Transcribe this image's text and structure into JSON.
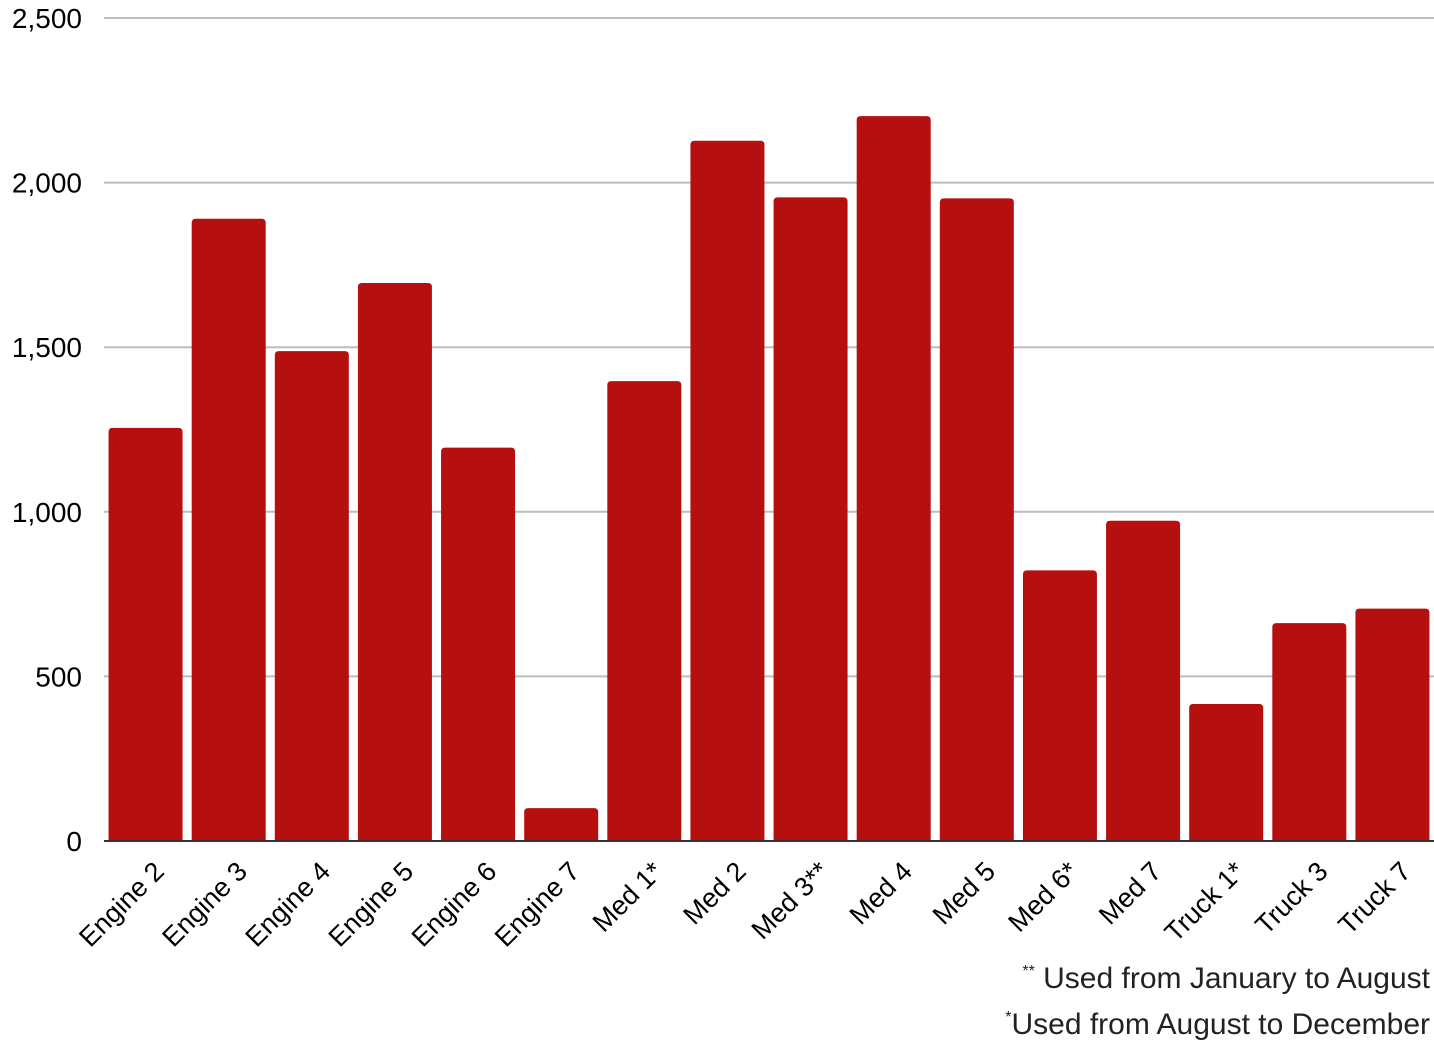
{
  "chart_data": {
    "type": "bar",
    "categories": [
      "Engine 2",
      "Engine 3",
      "Engine 4",
      "Engine 5",
      "Engine 6",
      "Engine 7",
      "Med 1*",
      "Med 2",
      "Med 3**",
      "Med 4",
      "Med 5",
      "Med 6*",
      "Med 7",
      "Truck 1*",
      "Truck 3",
      "Truck 7"
    ],
    "values": [
      1255,
      1890,
      1488,
      1695,
      1195,
      100,
      1397,
      2127,
      1955,
      2202,
      1952,
      822,
      973,
      416,
      662,
      706
    ],
    "title": "",
    "xlabel": "",
    "ylabel": "",
    "ylim": [
      0,
      2500
    ],
    "yticks": [
      0,
      500,
      1000,
      1500,
      2000,
      2500
    ],
    "ytick_labels": [
      "0",
      "500",
      "1,000",
      "1,500",
      "2,000",
      "2,500"
    ],
    "grid": true,
    "bar_color": "#b50f0f",
    "grid_color": "#bdbdbd"
  },
  "footnotes": {
    "note1_mark": "**",
    "note1_text": " Used from January to August",
    "note2_mark": "*",
    "note2_text": "Used from August to December"
  }
}
